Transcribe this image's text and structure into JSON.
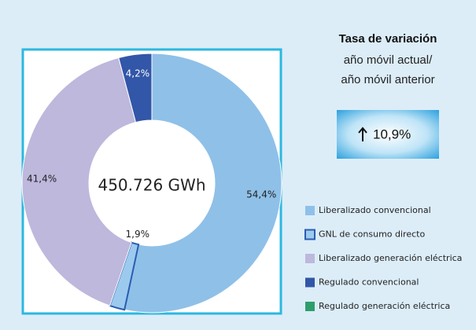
{
  "chart_data": {
    "type": "pie",
    "center_label": "450.726 GWh",
    "categories": [
      "Liberalizado convencional",
      "GNL de consumo directo",
      "Liberalizado generación eléctrica",
      "Regulado convencional",
      "Regulado generación eléctrica"
    ],
    "values": [
      54.4,
      1.9,
      41.4,
      4.2,
      0
    ],
    "value_labels": [
      "54,4%",
      "1,9%",
      "41,4%",
      "4,2%",
      null
    ],
    "colors": [
      "#8fc0e8",
      "#9ccaee",
      "#bdb8dc",
      "#3256a8",
      "#2e9e6a"
    ]
  },
  "kpi": {
    "title": "Tasa de variación",
    "subtitle": [
      "año móvil actual/",
      "año móvil anterior"
    ],
    "value": "10,9%"
  }
}
